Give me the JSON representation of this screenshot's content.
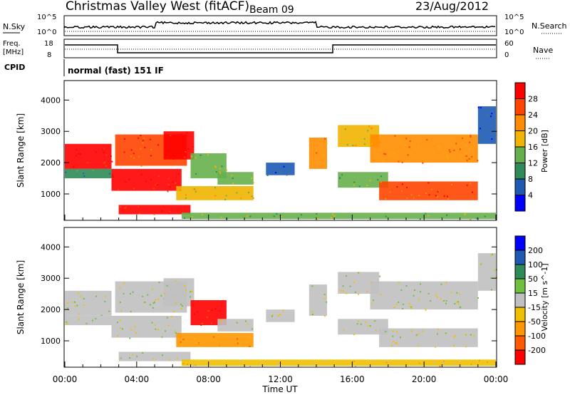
{
  "header": {
    "station": "Christmas Valley West (fitACF)",
    "beam": "Beam 09",
    "date": "23/Aug/2012"
  },
  "noise_panel": {
    "left_label": "N.Sky",
    "right_label": "N.Search",
    "tick_top": "10^5",
    "tick_bottom": "10^0"
  },
  "freq_panel": {
    "left_label_1": "Freq.",
    "left_label_2": "[MHz]",
    "left_ticks": [
      "18",
      "8"
    ],
    "right_label": "Nave",
    "right_ticks": [
      "60",
      "0"
    ]
  },
  "cpid_panel": {
    "label": "CPID",
    "mode": "normal (fast) 151 IF"
  },
  "x_axis": {
    "title": "Time UT",
    "ticks": [
      "00:00",
      "04:00",
      "08:00",
      "12:00",
      "16:00",
      "20:00",
      "00:00"
    ]
  },
  "colors": {
    "power": [
      "#0000ff",
      "#1e5ab4",
      "#2e8b57",
      "#66b04c",
      "#f0b400",
      "#ff8c00",
      "#ff4500",
      "#ff0000"
    ],
    "velocity": [
      "#ff0000",
      "#ff5a00",
      "#ff9600",
      "#f0c000",
      "#c0c0c0",
      "#70c040",
      "#2e8b57",
      "#1e5ab4",
      "#0000ff"
    ]
  },
  "chart_data": [
    {
      "type": "heatmap",
      "title": "Power",
      "ylabel": "Slant Range [km]",
      "xlabel": "Time UT",
      "y_ticks": [
        1000,
        2000,
        3000,
        4000
      ],
      "ylim": [
        180,
        4600
      ],
      "xlim_hours": [
        0,
        24
      ],
      "colorbar": {
        "label": "Power [dB]",
        "ticks": [
          4,
          8,
          12,
          16,
          20,
          24,
          28
        ]
      },
      "regions": [
        {
          "t0": 0.0,
          "t1": 2.6,
          "r0": 1800,
          "r1": 2600,
          "level": 7
        },
        {
          "t0": 0.0,
          "t1": 2.6,
          "r0": 1500,
          "r1": 1800,
          "level": 2
        },
        {
          "t0": 2.6,
          "t1": 6.5,
          "r0": 1100,
          "r1": 1800,
          "level": 7
        },
        {
          "t0": 2.8,
          "t1": 6.8,
          "r0": 1900,
          "r1": 2900,
          "level": 6
        },
        {
          "t0": 5.5,
          "t1": 7.2,
          "r0": 2100,
          "r1": 3000,
          "level": 7
        },
        {
          "t0": 6.2,
          "t1": 10.5,
          "r0": 800,
          "r1": 1250,
          "level": 4
        },
        {
          "t0": 7.0,
          "t1": 9.0,
          "r0": 1500,
          "r1": 2300,
          "level": 3
        },
        {
          "t0": 8.5,
          "t1": 10.5,
          "r0": 1300,
          "r1": 1700,
          "level": 3
        },
        {
          "t0": 3.0,
          "t1": 7.0,
          "r0": 350,
          "r1": 650,
          "level": 7
        },
        {
          "t0": 6.5,
          "t1": 24.0,
          "r0": 200,
          "r1": 400,
          "level": 3
        },
        {
          "t0": 11.2,
          "t1": 12.8,
          "r0": 1600,
          "r1": 2000,
          "level": 1
        },
        {
          "t0": 13.6,
          "t1": 14.6,
          "r0": 1800,
          "r1": 2800,
          "level": 5
        },
        {
          "t0": 15.2,
          "t1": 18.0,
          "r0": 1200,
          "r1": 1700,
          "level": 3
        },
        {
          "t0": 15.2,
          "t1": 17.5,
          "r0": 2500,
          "r1": 3200,
          "level": 4
        },
        {
          "t0": 17.0,
          "t1": 23.0,
          "r0": 2000,
          "r1": 2900,
          "level": 5
        },
        {
          "t0": 17.5,
          "t1": 23.0,
          "r0": 800,
          "r1": 1400,
          "level": 6
        },
        {
          "t0": 23.0,
          "t1": 24.0,
          "r0": 2600,
          "r1": 3800,
          "level": 1
        }
      ]
    },
    {
      "type": "heatmap",
      "title": "Velocity",
      "ylabel": "Slant Range [km]",
      "xlabel": "Time UT",
      "y_ticks": [
        1000,
        2000,
        3000,
        4000
      ],
      "ylim": [
        180,
        4600
      ],
      "xlim_hours": [
        0,
        24
      ],
      "colorbar": {
        "label": "Velocity [m s^-1]",
        "ticks": [
          200,
          100,
          50,
          15,
          -15,
          -50,
          -100,
          -200
        ]
      },
      "regions": [
        {
          "t0": 0.0,
          "t1": 2.6,
          "r0": 1800,
          "r1": 2600,
          "level": 4
        },
        {
          "t0": 0.0,
          "t1": 2.6,
          "r0": 1500,
          "r1": 1800,
          "level": 4
        },
        {
          "t0": 2.6,
          "t1": 6.5,
          "r0": 1100,
          "r1": 1800,
          "level": 4
        },
        {
          "t0": 2.8,
          "t1": 6.8,
          "r0": 1900,
          "r1": 2900,
          "level": 4
        },
        {
          "t0": 5.5,
          "t1": 7.2,
          "r0": 2100,
          "r1": 3000,
          "level": 4
        },
        {
          "t0": 6.2,
          "t1": 10.5,
          "r0": 800,
          "r1": 1250,
          "level": 2
        },
        {
          "t0": 7.0,
          "t1": 9.0,
          "r0": 1500,
          "r1": 2300,
          "level": 0
        },
        {
          "t0": 8.5,
          "t1": 10.5,
          "r0": 1300,
          "r1": 1700,
          "level": 4
        },
        {
          "t0": 3.0,
          "t1": 7.0,
          "r0": 350,
          "r1": 650,
          "level": 4
        },
        {
          "t0": 6.5,
          "t1": 24.0,
          "r0": 200,
          "r1": 400,
          "level": 3
        },
        {
          "t0": 11.2,
          "t1": 12.8,
          "r0": 1600,
          "r1": 2000,
          "level": 4
        },
        {
          "t0": 13.6,
          "t1": 14.6,
          "r0": 1800,
          "r1": 2800,
          "level": 4
        },
        {
          "t0": 15.2,
          "t1": 18.0,
          "r0": 1200,
          "r1": 1700,
          "level": 4
        },
        {
          "t0": 15.2,
          "t1": 17.5,
          "r0": 2500,
          "r1": 3200,
          "level": 4
        },
        {
          "t0": 17.0,
          "t1": 23.0,
          "r0": 2000,
          "r1": 2900,
          "level": 4
        },
        {
          "t0": 17.5,
          "t1": 23.0,
          "r0": 800,
          "r1": 1400,
          "level": 4
        },
        {
          "t0": 23.0,
          "t1": 24.0,
          "r0": 2600,
          "r1": 3800,
          "level": 4
        }
      ]
    }
  ]
}
